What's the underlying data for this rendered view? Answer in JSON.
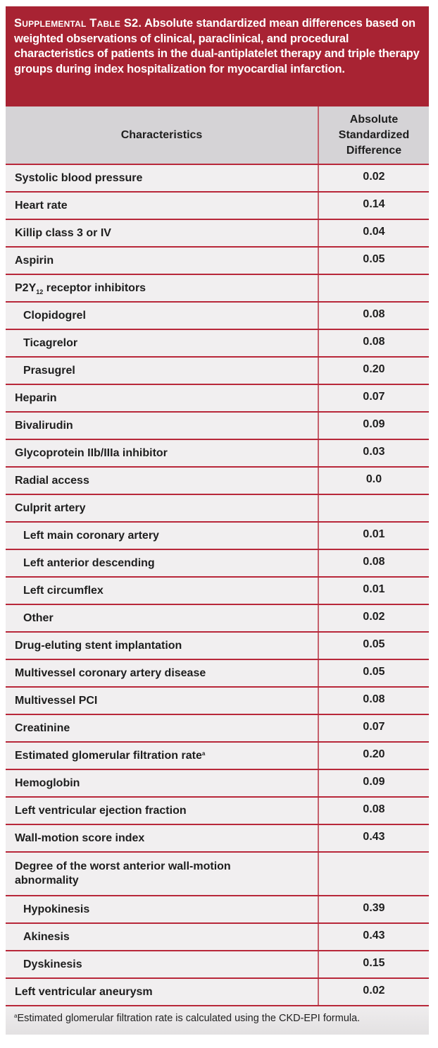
{
  "title": {
    "label": "Supplemental Table S2.",
    "text": "Absolute standardized mean differences based on weighted observations of clinical, paraclinical, and procedural characteristics of patients in the dual-antiplatelet therapy and triple therapy groups during index hospitalization for myocardial infarction."
  },
  "header": {
    "col1": "Characteristics",
    "col2_line1": "Absolute",
    "col2_line2": "Standardized",
    "col2_line3": "Difference"
  },
  "rows": [
    {
      "label": "Systolic blood pressure",
      "value": "0.02",
      "indent": false
    },
    {
      "label": "Heart rate",
      "value": "0.14",
      "indent": false
    },
    {
      "label": "Killip class 3 or IV",
      "value": "0.04",
      "indent": false
    },
    {
      "label": "Aspirin",
      "value": "0.05",
      "indent": false
    },
    {
      "label_pre": "P2Y",
      "label_sub": "12",
      "label_post": " receptor inhibitors",
      "value": "",
      "indent": false
    },
    {
      "label": "Clopidogrel",
      "value": "0.08",
      "indent": true
    },
    {
      "label": "Ticagrelor",
      "value": "0.08",
      "indent": true
    },
    {
      "label": "Prasugrel",
      "value": "0.20",
      "indent": true
    },
    {
      "label": "Heparin",
      "value": "0.07",
      "indent": false
    },
    {
      "label": "Bivalirudin",
      "value": "0.09",
      "indent": false
    },
    {
      "label": "Glycoprotein IIb/IIIa inhibitor",
      "value": "0.03",
      "indent": false
    },
    {
      "label": "Radial access",
      "value": "0.0",
      "indent": false
    },
    {
      "label": "Culprit artery",
      "value": "",
      "indent": false
    },
    {
      "label": "Left main coronary artery",
      "value": "0.01",
      "indent": true
    },
    {
      "label": "Left anterior descending",
      "value": "0.08",
      "indent": true
    },
    {
      "label": "Left circumflex",
      "value": "0.01",
      "indent": true
    },
    {
      "label": "Other",
      "value": "0.02",
      "indent": true
    },
    {
      "label": "Drug-eluting stent implantation",
      "value": "0.05",
      "indent": false
    },
    {
      "label": "Multivessel coronary artery disease",
      "value": "0.05",
      "indent": false
    },
    {
      "label": "Multivessel PCI",
      "value": "0.08",
      "indent": false
    },
    {
      "label": "Creatinine",
      "value": "0.07",
      "indent": false
    },
    {
      "label": "Estimated glomerular filtration rate",
      "footnote_mark": "a",
      "value": "0.20",
      "indent": false
    },
    {
      "label": "Hemoglobin",
      "value": "0.09",
      "indent": false
    },
    {
      "label": "Left ventricular ejection fraction",
      "value": "0.08",
      "indent": false
    },
    {
      "label": "Wall-motion score index",
      "value": "0.43",
      "indent": false
    },
    {
      "label_line1": "Degree of the worst anterior wall-motion",
      "label_line2": "abnormality",
      "value": "",
      "indent": false
    },
    {
      "label": "Hypokinesis",
      "value": "0.39",
      "indent": true
    },
    {
      "label": "Akinesis",
      "value": "0.43",
      "indent": true
    },
    {
      "label": "Dyskinesis",
      "value": "0.15",
      "indent": true
    },
    {
      "label": "Left ventricular aneurysm",
      "value": "0.02",
      "indent": false
    }
  ],
  "footnote": {
    "mark": "a",
    "text": "Estimated glomerular filtration rate is calculated using the CKD-EPI formula."
  },
  "colors": {
    "title_band": "#a82333",
    "header_row": "#d5d3d6",
    "body_bg": "#f1eff0",
    "rule": "#b8283a"
  }
}
